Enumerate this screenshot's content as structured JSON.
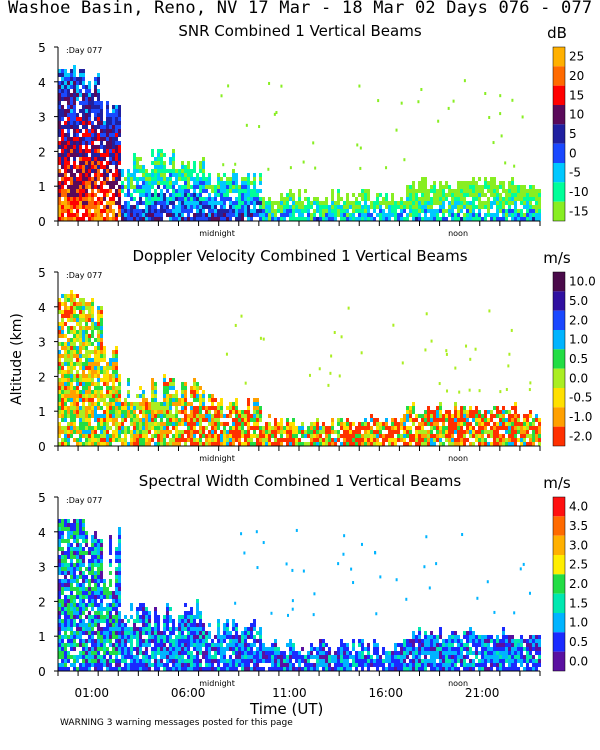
{
  "figure": {
    "title": "Washoe Basin, Reno, NV  17 Mar - 18 Mar 02 Days 076 - 077",
    "ylabel": "Altitude (km)",
    "xlabel": "Time (UT)",
    "warning": "WARNING  3 warning messages posted for this page",
    "colors": {
      "axis": "#000000",
      "background": "#ffffff"
    }
  },
  "chart_data": [
    {
      "type": "heatmap",
      "title": "SNR Combined 1 Vertical Beams",
      "units": "dB",
      "day_label": "Day 077",
      "y_range": [
        0,
        5
      ],
      "y_ticks": [
        "0",
        "1",
        "2",
        "3",
        "4",
        "5"
      ],
      "x_markers": [
        "midnight",
        "noon"
      ],
      "x_tick_labels": [],
      "colorbar_labels": [
        "25",
        "20",
        "15",
        "10",
        "5",
        "0",
        "-5",
        "-10",
        "-15"
      ],
      "colorbar_colors": [
        "#ffb000",
        "#ff6a00",
        "#ff0000",
        "#5a0a5a",
        "#2020a0",
        "#1a48ff",
        "#00c8ff",
        "#00ff99",
        "#88ee22"
      ]
    },
    {
      "type": "heatmap",
      "title": "Doppler Velocity Combined 1 Vertical Beams",
      "units": "m/s",
      "day_label": "Day 077",
      "y_range": [
        0,
        5
      ],
      "y_ticks": [
        "0",
        "1",
        "2",
        "3",
        "4",
        "5"
      ],
      "x_markers": [
        "midnight",
        "noon"
      ],
      "x_tick_labels": [],
      "colorbar_labels": [
        "10.0",
        "5.0",
        "2.0",
        "1.0",
        "0.5",
        "0.0",
        "-0.5",
        "-1.0",
        "-2.0"
      ],
      "colorbar_colors": [
        "#4a0a4a",
        "#3010a0",
        "#1a48ff",
        "#00b4ff",
        "#22dd44",
        "#aaee22",
        "#ffe000",
        "#ffa000",
        "#ff3000"
      ]
    },
    {
      "type": "heatmap",
      "title": "Spectral Width Combined 1 Vertical Beams",
      "units": "m/s",
      "day_label": "Day 077",
      "y_range": [
        0,
        5
      ],
      "y_ticks": [
        "0",
        "1",
        "2",
        "3",
        "4",
        "5"
      ],
      "x_markers": [
        "midnight",
        "noon"
      ],
      "x_tick_labels": [
        "01:00",
        "06:00",
        "11:00",
        "16:00",
        "21:00"
      ],
      "colorbar_labels": [
        "4.0",
        "3.5",
        "3.0",
        "2.5",
        "2.0",
        "1.5",
        "1.0",
        "0.5",
        "0.0"
      ],
      "colorbar_colors": [
        "#ff1010",
        "#ff6a00",
        "#ffb000",
        "#ffee00",
        "#22dd44",
        "#00e8b0",
        "#00b4ff",
        "#1a2aff",
        "#5a10a0"
      ]
    }
  ]
}
